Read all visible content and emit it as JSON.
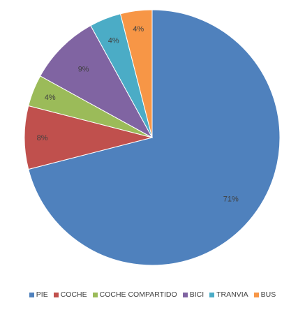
{
  "chart_data": {
    "type": "pie",
    "categories": [
      "PIE",
      "COCHE",
      "COCHE COMPARTIDO",
      "BICI",
      "TRANVIA",
      "BUS"
    ],
    "values": [
      71,
      8,
      4,
      9,
      4,
      4
    ],
    "labels": [
      "71%",
      "8%",
      "4%",
      "9%",
      "4%",
      "4%"
    ],
    "colors": [
      "#4F81BD",
      "#C0504D",
      "#9BBB59",
      "#8064A2",
      "#4BACC6",
      "#F79646"
    ],
    "start": "12 o'clock",
    "direction": "clockwise",
    "legend": "bottom"
  }
}
